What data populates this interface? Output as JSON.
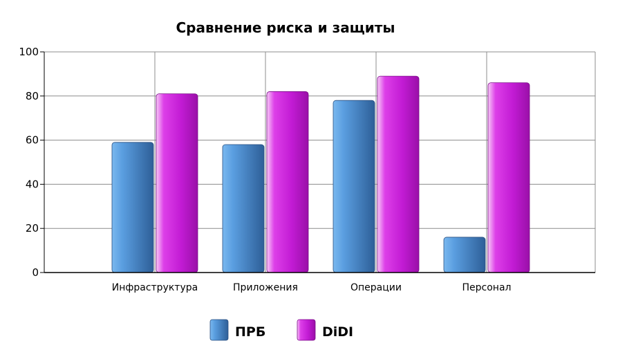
{
  "chart_data": {
    "type": "bar",
    "title": "Сравнение риска и защиты",
    "xlabel": "",
    "ylabel": "",
    "categories": [
      "Инфраструктура",
      "Приложения",
      "Операции",
      "Персонал"
    ],
    "series": [
      {
        "name": "ПРБ",
        "values": [
          59,
          58,
          78,
          16
        ],
        "color": "#3a78c0"
      },
      {
        "name": "DiDI",
        "values": [
          81,
          82,
          89,
          86
        ],
        "color": "#c020d8"
      }
    ],
    "ylim": [
      0,
      100
    ],
    "yticks": [
      0,
      20,
      40,
      60,
      80,
      100
    ],
    "grid": true,
    "legend": "bottom"
  }
}
